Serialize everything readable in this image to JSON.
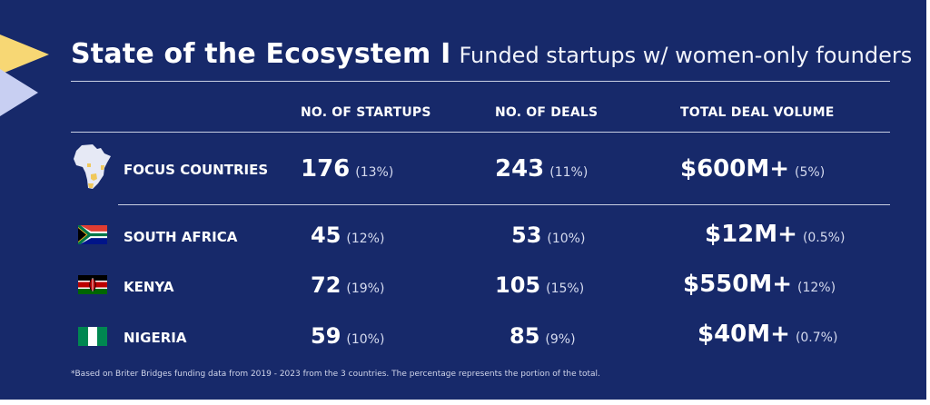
{
  "title": {
    "main": "State of the Ecosystem I",
    "sub": "Funded startups w/ women-only founders"
  },
  "columns": [
    "NO. OF STARTUPS",
    "NO. OF DEALS",
    "TOTAL DEAL VOLUME"
  ],
  "rows": [
    {
      "label": "FOCUS COUNTRIES",
      "icon": "africa-map-icon",
      "startups": {
        "value": "176",
        "pct": "(13%)"
      },
      "deals": {
        "value": "243",
        "pct": "(11%)"
      },
      "volume": {
        "value": "$600M+",
        "pct": "(5%)"
      }
    },
    {
      "label": "SOUTH AFRICA",
      "icon": "south-africa-flag-icon",
      "startups": {
        "value": "45",
        "pct": "(12%)"
      },
      "deals": {
        "value": "53",
        "pct": "(10%)"
      },
      "volume": {
        "value": "$12M+",
        "pct": "(0.5%)"
      }
    },
    {
      "label": "KENYA",
      "icon": "kenya-flag-icon",
      "startups": {
        "value": "72",
        "pct": "(19%)"
      },
      "deals": {
        "value": "105",
        "pct": "(15%)"
      },
      "volume": {
        "value": "$550M+",
        "pct": "(12%)"
      }
    },
    {
      "label": "NIGERIA",
      "icon": "nigeria-flag-icon",
      "startups": {
        "value": "59",
        "pct": "(10%)"
      },
      "deals": {
        "value": "85",
        "pct": "(9%)"
      },
      "volume": {
        "value": "$40M+",
        "pct": "(0.7%)"
      }
    }
  ],
  "footnote": "*Based on Briter Bridges funding data from 2019 - 2023 from the 3 countries. The percentage represents the portion of the total.",
  "colors": {
    "background": "#17296a",
    "accent_yellow": "#f7d774",
    "accent_lavender": "#c8cff2",
    "text": "#ffffff"
  }
}
